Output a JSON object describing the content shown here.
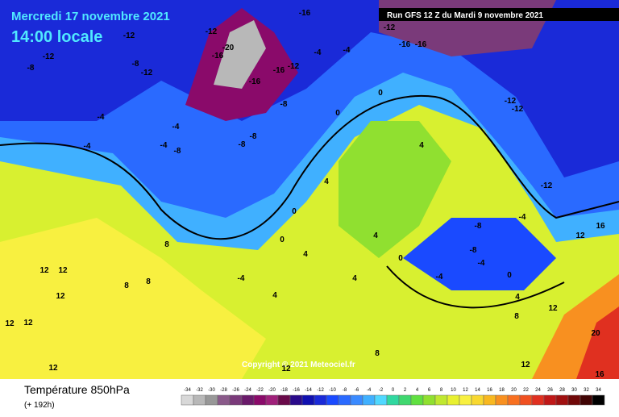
{
  "header": {
    "date": "Mercredi 17 novembre 2021",
    "time": "14:00 locale",
    "run": "Run GFS 12 Z du Mardi 9 novembre 2021"
  },
  "footer": {
    "title": "Température 850hPa",
    "lead": "(+ 192h)",
    "copyright": "Copyright © 2021 Meteociel.fr"
  },
  "scale": {
    "values": [
      -34,
      -32,
      -30,
      -28,
      -26,
      -24,
      -22,
      -20,
      -18,
      -16,
      -14,
      -12,
      -10,
      -8,
      -6,
      -4,
      -2,
      0,
      2,
      4,
      6,
      8,
      10,
      12,
      14,
      16,
      18,
      20,
      22,
      24,
      26,
      28,
      30,
      32,
      34
    ],
    "colors": [
      "#d8d8d8",
      "#b8b8b8",
      "#989898",
      "#8a5a8a",
      "#7a3a7a",
      "#6a1a6a",
      "#8a0a6a",
      "#a0207a",
      "#6a0a4a",
      "#2a0a8a",
      "#1010b0",
      "#1a2ad8",
      "#1a4aff",
      "#2a6aff",
      "#3a8aff",
      "#40b0ff",
      "#50d8ff",
      "#30d8a0",
      "#40d870",
      "#60e040",
      "#90e030",
      "#c0e830",
      "#e8f030",
      "#f8f040",
      "#f8d830",
      "#f8b820",
      "#f89020",
      "#f87020",
      "#f05020",
      "#e03020",
      "#c01818",
      "#a01010",
      "#700808",
      "#400404",
      "#000000"
    ]
  },
  "map_labels": [
    -12,
    -8,
    -12,
    -12,
    -8,
    -12,
    -16,
    -20,
    -16,
    -12,
    -16,
    -8,
    -4,
    -4,
    -16,
    -12,
    -16,
    -16,
    -12,
    -12,
    -4,
    -8,
    -4,
    -8,
    -8,
    -4,
    -4,
    -12,
    0,
    0,
    4,
    4,
    0,
    0,
    4,
    8,
    8,
    12,
    12,
    12,
    12,
    12,
    -4,
    4,
    4,
    -8,
    -4,
    0,
    -4,
    -8,
    4,
    8,
    12,
    12,
    12,
    16,
    20,
    16,
    8,
    12,
    4,
    0,
    -4,
    12,
    8
  ]
}
